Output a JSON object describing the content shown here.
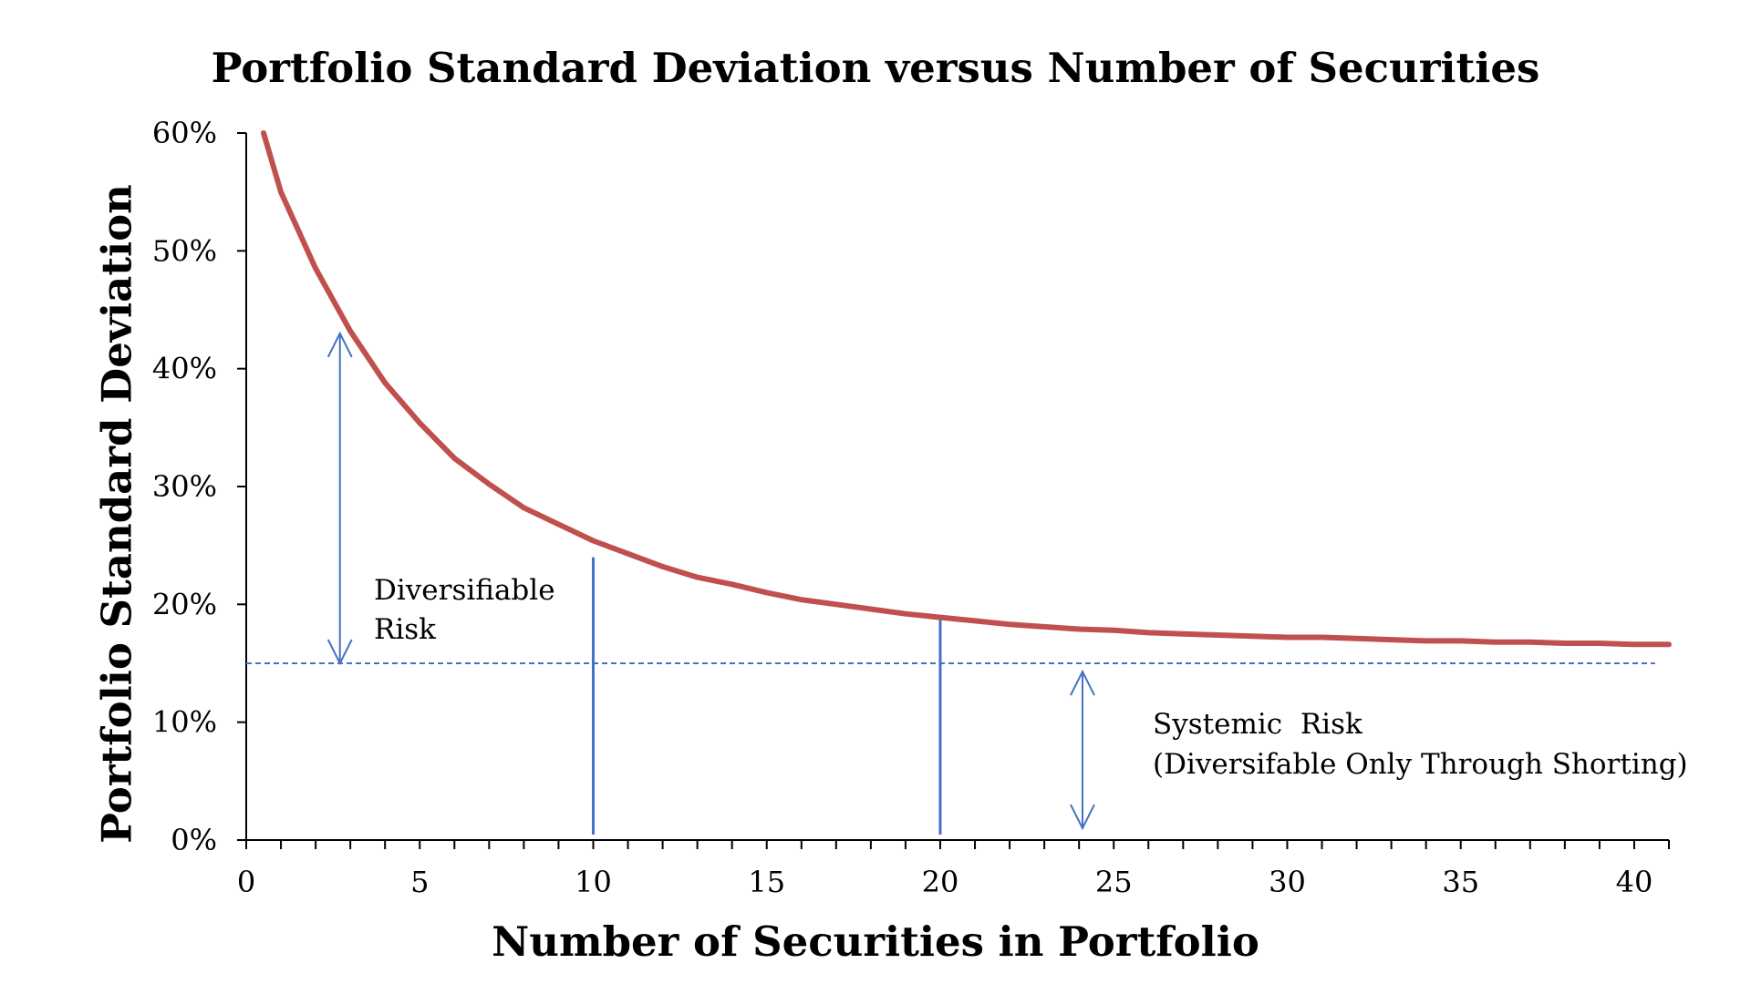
{
  "chart_data": {
    "type": "line",
    "title": "Portfolio Standard Deviation versus Number of Securities",
    "xlabel": "Number of Securities in Portfolio",
    "ylabel": "Portfolio Standard Deviation",
    "xlim": [
      0,
      41
    ],
    "ylim": [
      0,
      60
    ],
    "x_ticks": [
      0,
      5,
      10,
      15,
      20,
      25,
      30,
      35,
      40
    ],
    "x_tick_labels": [
      "0",
      "5",
      "10",
      "15",
      "20",
      "25",
      "30",
      "35",
      "40"
    ],
    "y_ticks": [
      0,
      10,
      20,
      30,
      40,
      50,
      60
    ],
    "y_tick_labels": [
      "0%",
      "10%",
      "20%",
      "30%",
      "40%",
      "50%",
      "60%"
    ],
    "grid": false,
    "legend": "none",
    "series": [
      {
        "color": "#c0504d",
        "x": [
          0.5,
          1,
          2,
          3,
          4,
          5,
          6,
          7,
          8,
          9,
          10,
          11,
          12,
          13,
          14,
          15,
          16,
          17,
          18,
          19,
          20,
          21,
          22,
          23,
          24,
          25,
          26,
          27,
          28,
          29,
          30,
          31,
          32,
          33,
          34,
          35,
          36,
          37,
          38,
          39,
          40,
          41
        ],
        "y": [
          60,
          55,
          48.5,
          43.2,
          38.8,
          35.4,
          32.4,
          30.2,
          28.2,
          26.8,
          25.4,
          24.3,
          23.2,
          22.3,
          21.7,
          21,
          20.4,
          20,
          19.6,
          19.2,
          18.9,
          18.6,
          18.3,
          18.1,
          17.9,
          17.8,
          17.6,
          17.5,
          17.4,
          17.3,
          17.2,
          17.2,
          17.1,
          17,
          16.9,
          16.9,
          16.8,
          16.8,
          16.7,
          16.7,
          16.6,
          16.6
        ]
      }
    ],
    "reference_lines": [
      {
        "kind": "horizontal",
        "style": "dashed",
        "y": 15,
        "color": "#4472c4"
      },
      {
        "kind": "vertical",
        "style": "solid",
        "x": 10,
        "y_top": 24,
        "color": "#4472c4"
      },
      {
        "kind": "vertical",
        "style": "solid",
        "x": 20,
        "y_top": 19,
        "color": "#4472c4"
      }
    ],
    "annotations": [
      {
        "lines": [
          "Diversifiable",
          "Risk"
        ],
        "arrow_x": 2.7,
        "arrow_y_from": 15,
        "arrow_y_to": 43
      },
      {
        "lines": [
          "Systemic  Risk",
          "(Diversifable Only Through Shorting)"
        ],
        "arrow_x": 24.1,
        "arrow_y_from": 1,
        "arrow_y_to": 14.3
      }
    ],
    "arrow_color": "#4472c4"
  }
}
